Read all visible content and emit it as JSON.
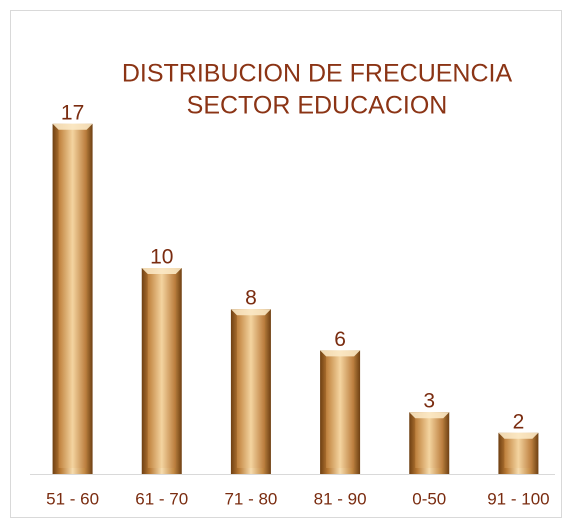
{
  "chart_data": {
    "type": "bar",
    "title": [
      "DISTRIBUCION  DE FRECUENCIA",
      "SECTOR EDUCACION"
    ],
    "categories": [
      "51 - 60",
      "61 - 70",
      "71 - 80",
      "81 - 90",
      "0-50",
      "91 - 100"
    ],
    "values": [
      17,
      10,
      8,
      6,
      3,
      2
    ]
  }
}
